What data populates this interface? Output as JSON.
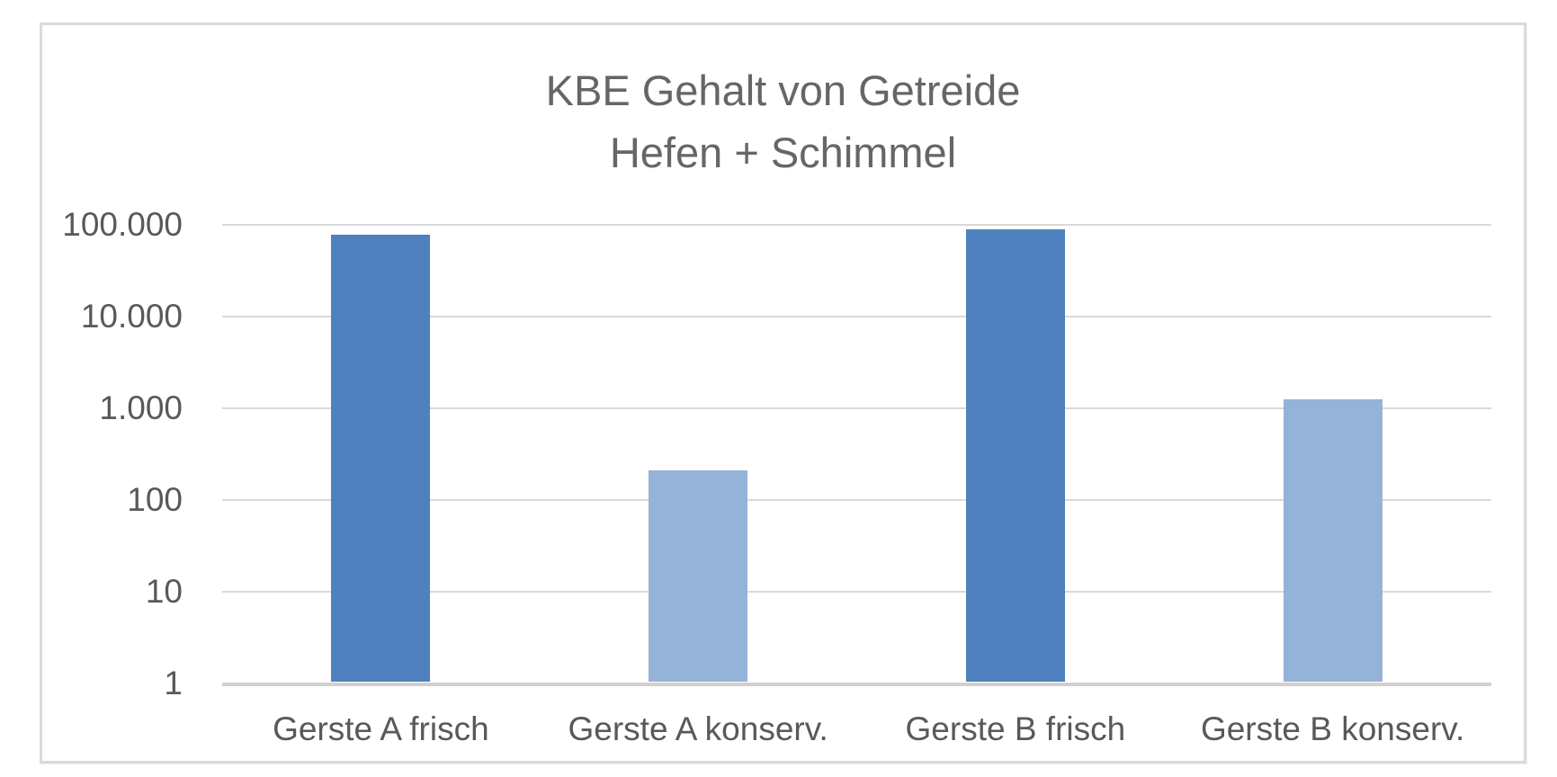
{
  "chart_data": {
    "type": "bar",
    "title_lines": [
      "KBE Gehalt von Getreide",
      "Hefen + Schimmel"
    ],
    "title": "KBE Gehalt von Getreide Hefen + Schimmel",
    "categories": [
      "Gerste A frisch",
      "Gerste A konserv.",
      "Gerste B frisch",
      "Gerste B konserv."
    ],
    "values": [
      75000,
      200,
      85000,
      1200
    ],
    "bar_colors": [
      "#4e81bd",
      "#95b3d8",
      "#4e81bd",
      "#95b3d8"
    ],
    "xlabel": "",
    "ylabel": "",
    "yscale": "log",
    "ylim": [
      1,
      100000
    ],
    "yticks": [
      {
        "value": 100000,
        "label": "100.000"
      },
      {
        "value": 10000,
        "label": "10.000"
      },
      {
        "value": 1000,
        "label": "1.000"
      },
      {
        "value": 100,
        "label": "100"
      },
      {
        "value": 10,
        "label": "10"
      },
      {
        "value": 1,
        "label": "1"
      }
    ],
    "grid": true,
    "legend": false,
    "colors": {
      "bar_dark": "#4e81bd",
      "bar_light": "#95b3d8",
      "title_text": "#666666",
      "axis_text": "#595959",
      "gridline": "#d9d9d9",
      "axis_line": "#d0d0d0",
      "frame_border": "#dadada",
      "background": "#ffffff"
    }
  }
}
